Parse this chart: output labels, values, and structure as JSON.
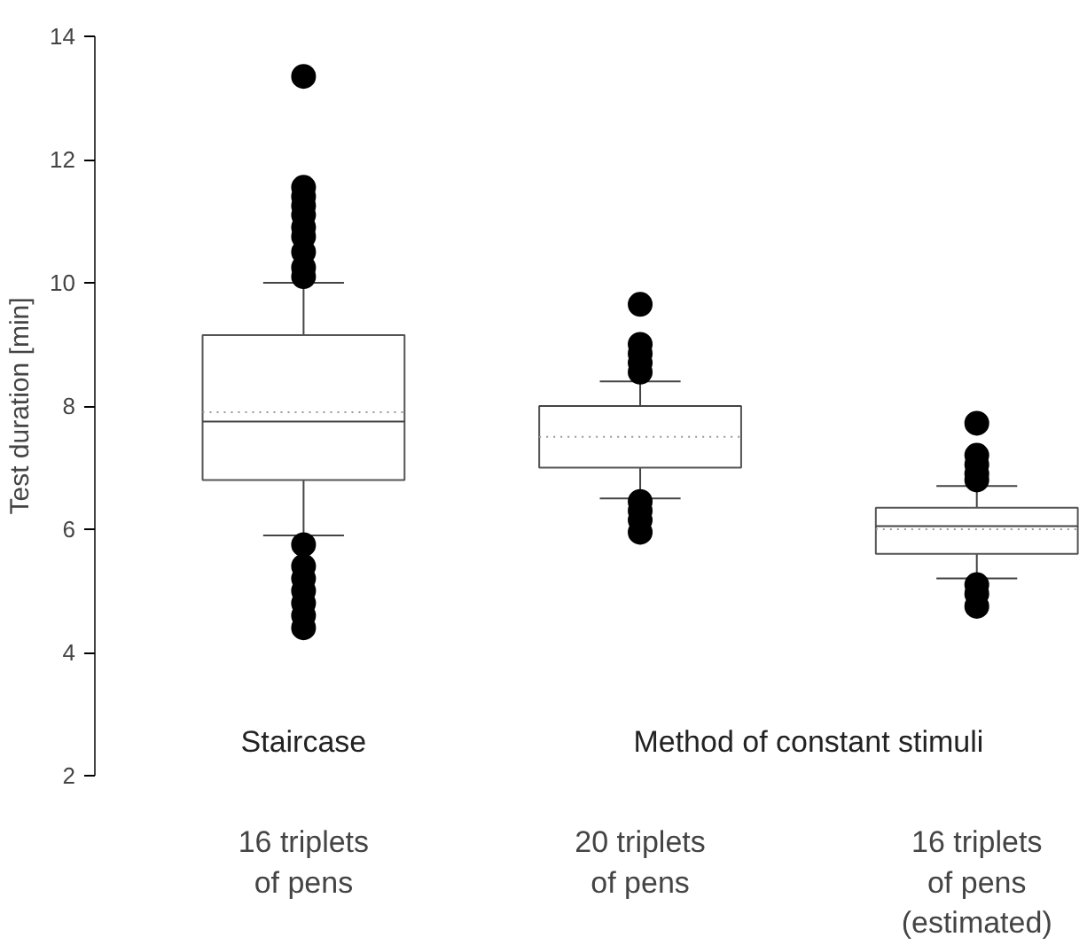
{
  "chart_data": {
    "type": "box",
    "ylabel": "Test duration [min]",
    "categories": [
      "16 triplets\nof pens",
      "20 triplets\nof pens",
      "16 triplets\nof pens\n(estimated)"
    ],
    "boxes": [
      {
        "low": 5.9,
        "q1": 6.8,
        "median": 7.75,
        "q3": 9.15,
        "high": 10.0,
        "mean": 7.9,
        "outliers": [
          13.35,
          11.55,
          11.4,
          11.25,
          11.1,
          10.9,
          10.75,
          10.5,
          10.25,
          10.1,
          5.75,
          5.4,
          5.2,
          5.0,
          4.8,
          4.6,
          4.4
        ]
      },
      {
        "low": 6.5,
        "q1": 7.0,
        "median": 8.0,
        "q3": 8.0,
        "high": 8.4,
        "mean": 7.5,
        "outliers": [
          9.65,
          9.0,
          8.85,
          8.7,
          8.55,
          6.45,
          6.3,
          6.15,
          5.95
        ]
      },
      {
        "low": 5.2,
        "q1": 5.6,
        "median": 6.05,
        "q3": 6.35,
        "high": 6.7,
        "mean": 6.0,
        "outliers": [
          7.72,
          7.2,
          7.05,
          6.9,
          6.8,
          5.1,
          4.95,
          4.75
        ]
      }
    ],
    "ylim": [
      2,
      14
    ],
    "yticks": [
      2,
      4,
      6,
      8,
      10,
      12,
      14
    ],
    "annotations": [
      "Staircase",
      "Method of constant stimuli"
    ],
    "grid": false
  }
}
